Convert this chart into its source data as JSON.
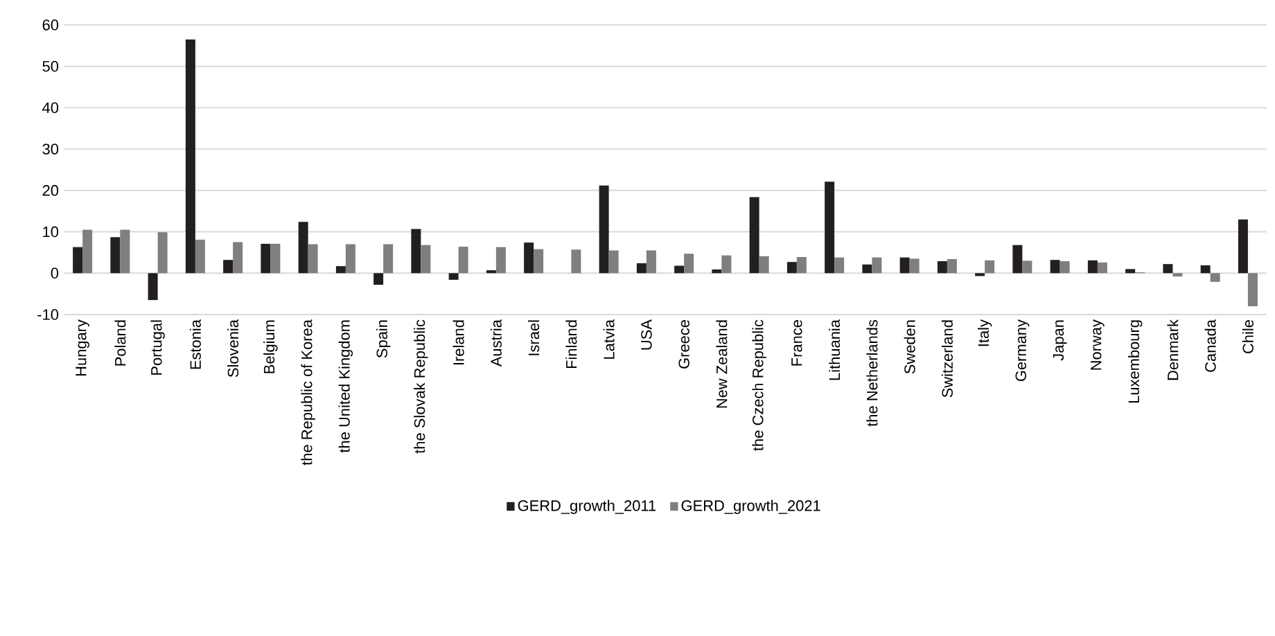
{
  "chart_data": {
    "type": "bar",
    "categories": [
      "Hungary",
      "Poland",
      "Portugal",
      "Estonia",
      "Slovenia",
      "Belgium",
      "the Republic of Korea",
      "the United Kingdom",
      "Spain",
      "the Slovak Republic",
      "Ireland",
      "Austria",
      "Israel",
      "Finland",
      "Latvia",
      "USA",
      "Greece",
      "New Zealand",
      "the Czech Republic",
      "France",
      "Lithuania",
      "the Netherlands",
      "Sweden",
      "Switzerland",
      "Italy",
      "Germany",
      "Japan",
      "Norway",
      "Luxembourg",
      "Denmark",
      "Canada",
      "Chile"
    ],
    "series": [
      {
        "name": "GERD_growth_2011",
        "color": "#231f20",
        "values": [
          6.3,
          8.7,
          -6.5,
          56.5,
          3.2,
          7.1,
          12.4,
          1.7,
          -2.8,
          10.7,
          -1.6,
          0.7,
          7.4,
          0,
          21.2,
          2.4,
          1.8,
          0.9,
          18.4,
          2.7,
          22.1,
          2.1,
          3.8,
          2.9,
          -0.7,
          6.8,
          3.2,
          3.1,
          1.0,
          2.2,
          1.9,
          13.0
        ]
      },
      {
        "name": "GERD_growth_2021",
        "color": "#7f7f7f",
        "values": [
          10.5,
          10.5,
          9.9,
          8.1,
          7.5,
          7.1,
          7.0,
          7.0,
          7.0,
          6.8,
          6.4,
          6.3,
          5.8,
          5.7,
          5.5,
          5.5,
          4.7,
          4.3,
          4.1,
          3.9,
          3.8,
          3.8,
          3.5,
          3.4,
          3.1,
          3.0,
          2.9,
          2.6,
          0.2,
          -0.8,
          -2.1,
          -8.0
        ]
      }
    ],
    "ylim": [
      -10,
      60
    ],
    "yticks": [
      -10,
      0,
      10,
      20,
      30,
      40,
      50,
      60
    ],
    "grid": "y",
    "legend": "bottom"
  }
}
